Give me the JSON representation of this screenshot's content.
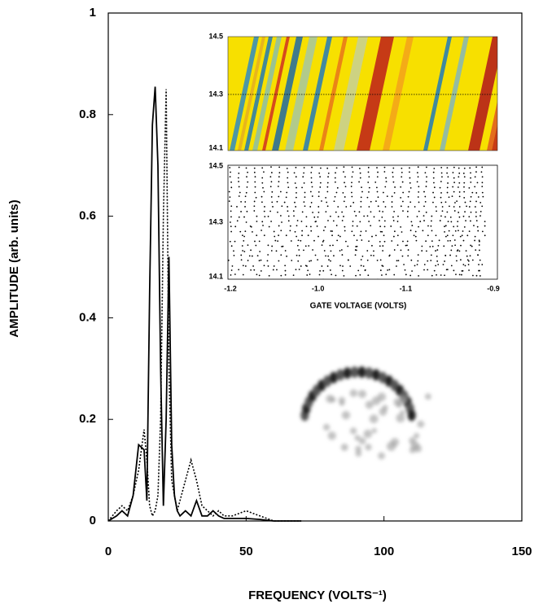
{
  "chart_data": {
    "type": "line",
    "x_label": "FREQUENCY (VOLTS⁻¹)",
    "y_label": "AMPLITUDE (arb. units)",
    "x": [
      0,
      3,
      5,
      7,
      9,
      11,
      13,
      14,
      15,
      16,
      17,
      18,
      19,
      20,
      21,
      22,
      23,
      24,
      25,
      26,
      28,
      30,
      32,
      34,
      36,
      38,
      40,
      42,
      45,
      50,
      55,
      60,
      70
    ],
    "series": [
      {
        "color": "#000000",
        "dash": "solid",
        "values": [
          0,
          0.01,
          0.02,
          0.01,
          0.05,
          0.15,
          0.14,
          0.04,
          0.45,
          0.78,
          0.855,
          0.7,
          0.3,
          0.03,
          0.2,
          0.52,
          0.15,
          0.05,
          0.02,
          0.01,
          0.02,
          0.01,
          0.04,
          0.01,
          0.01,
          0.02,
          0.01,
          0.005,
          0.005,
          0.005,
          0.003,
          0,
          0
        ]
      },
      {
        "color": "#000000",
        "dash": "dotted",
        "values": [
          0,
          0.02,
          0.03,
          0.02,
          0.05,
          0.1,
          0.18,
          0.12,
          0.03,
          0.01,
          0.02,
          0.05,
          0.2,
          0.6,
          0.85,
          0.3,
          0.08,
          0.05,
          0.02,
          0.04,
          0.08,
          0.12,
          0.08,
          0.03,
          0.02,
          0.01,
          0.02,
          0.01,
          0.01,
          0.02,
          0.01,
          0,
          0
        ]
      }
    ],
    "xlim": [
      0,
      150
    ],
    "xticks": [
      0,
      50,
      100,
      150
    ],
    "ylim": [
      0,
      1
    ],
    "yticks": [
      0,
      0.2,
      0.4,
      0.6,
      0.8,
      1
    ]
  },
  "inset": {
    "top_y_tick_labels": [
      "14.5",
      "14.3",
      "14.1"
    ],
    "bottom_y_tick_labels": [
      "14.5",
      "14.3",
      "14.1"
    ],
    "x_tick_labels": [
      "-1.2",
      "-1.0",
      "-1.1",
      "-0.9"
    ],
    "x_label": "GATE VOLTAGE (VOLTS)"
  }
}
